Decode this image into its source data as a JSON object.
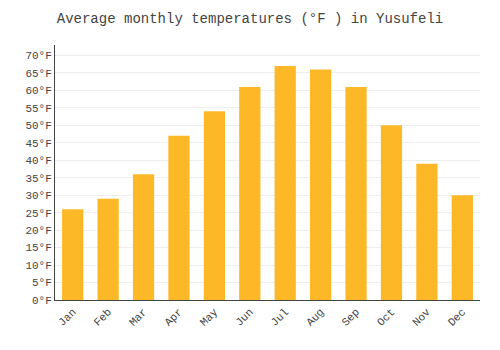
{
  "chart_data": {
    "type": "bar",
    "title": "Average monthly temperatures (°F ) in Yusufeli",
    "categories": [
      "Jan",
      "Feb",
      "Mar",
      "Apr",
      "May",
      "Jun",
      "Jul",
      "Aug",
      "Sep",
      "Oct",
      "Nov",
      "Dec"
    ],
    "values": [
      26,
      29,
      36,
      47,
      54,
      61,
      67,
      66,
      61,
      50,
      39,
      30
    ],
    "color": "#FDB827",
    "ylim": [
      0,
      73
    ],
    "yticks": [
      {
        "value": 0,
        "label": "0°F"
      },
      {
        "value": 5,
        "label": "5°F"
      },
      {
        "value": 10,
        "label": "10°F"
      },
      {
        "value": 15,
        "label": "15°F"
      },
      {
        "value": 20,
        "label": "20°F"
      },
      {
        "value": 25,
        "label": "25°F"
      },
      {
        "value": 30,
        "label": "30°F"
      },
      {
        "value": 35,
        "label": "35°F"
      },
      {
        "value": 40,
        "label": "40°F"
      },
      {
        "value": 45,
        "label": "45°F"
      },
      {
        "value": 50,
        "label": "50°F"
      },
      {
        "value": 55,
        "label": "55°F"
      },
      {
        "value": 60,
        "label": "60°F"
      },
      {
        "value": 65,
        "label": "65°F"
      },
      {
        "value": 70,
        "label": "70°F"
      }
    ],
    "grid": true
  }
}
